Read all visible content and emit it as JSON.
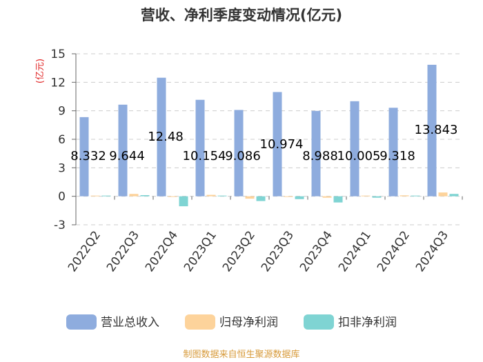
{
  "chart_data": {
    "type": "bar",
    "title": "营收、净利季度变动情况(亿元)",
    "unit_label": "(亿元)",
    "categories": [
      "2022Q2",
      "2022Q3",
      "2022Q4",
      "2023Q1",
      "2023Q2",
      "2023Q3",
      "2023Q4",
      "2024Q1",
      "2024Q2",
      "2024Q3"
    ],
    "series": [
      {
        "name": "营业总收入",
        "color": "#8eacde",
        "values": [
          8.332,
          9.644,
          12.48,
          10.154,
          9.086,
          10.974,
          8.988,
          10.005,
          9.318,
          13.843
        ],
        "labels": [
          "8.332",
          "9.644",
          "12.48",
          "10.154",
          "9.086",
          "10.974",
          "8.988",
          "10.005",
          "9.318",
          "13.843"
        ]
      },
      {
        "name": "归母净利润",
        "color": "#fdd39b",
        "values": [
          0.05,
          0.25,
          -0.05,
          0.15,
          -0.25,
          -0.05,
          -0.15,
          0.05,
          0.1,
          0.4
        ]
      },
      {
        "name": "扣非净利润",
        "color": "#7fd4d3",
        "values": [
          0.03,
          0.12,
          -1.05,
          0.05,
          -0.5,
          -0.3,
          -0.65,
          -0.15,
          0.03,
          0.25
        ]
      }
    ],
    "ylim": [
      -3,
      15
    ],
    "yticks": [
      -3,
      0,
      3,
      6,
      9,
      12,
      15
    ],
    "grid": true,
    "legend_position": "bottom",
    "source": "制图数据来自恒生聚源数据库",
    "unit_color": "#e02020",
    "source_color": "#d79a3a"
  }
}
